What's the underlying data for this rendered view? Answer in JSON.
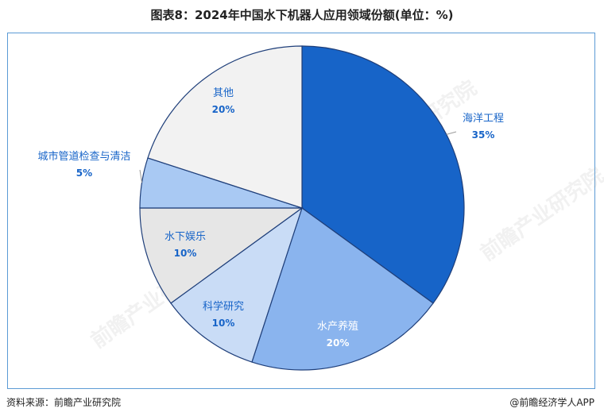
{
  "title": "图表8：2024年中国水下机器人应用领域份额(单位：%)",
  "source": "资料来源：前瞻产业研究院",
  "credit": "@前瞻经济学人APP",
  "watermark": "前瞻产业研究院",
  "chart_data": {
    "type": "pie",
    "start_angle_deg": 0,
    "direction": "clockwise",
    "slices": [
      {
        "name": "海洋工程",
        "value": 35,
        "label": "35%",
        "color": "#1764c8",
        "label_color": "#1764c8"
      },
      {
        "name": "水产养殖",
        "value": 20,
        "label": "20%",
        "color": "#8ab4ee",
        "label_color": "#ffffff"
      },
      {
        "name": "科学研究",
        "value": 10,
        "label": "10%",
        "color": "#c9dcf6",
        "label_color": "#1764c8"
      },
      {
        "name": "水下娱乐",
        "value": 10,
        "label": "10%",
        "color": "#e6e6e6",
        "label_color": "#1764c8"
      },
      {
        "name": "城市管道检查与清洁",
        "value": 5,
        "label": "5%",
        "color": "#a9c9f3",
        "label_color": "#1764c8"
      },
      {
        "name": "其他",
        "value": 20,
        "label": "20%",
        "color": "#f2f2f2",
        "label_color": "#1764c8"
      }
    ]
  }
}
